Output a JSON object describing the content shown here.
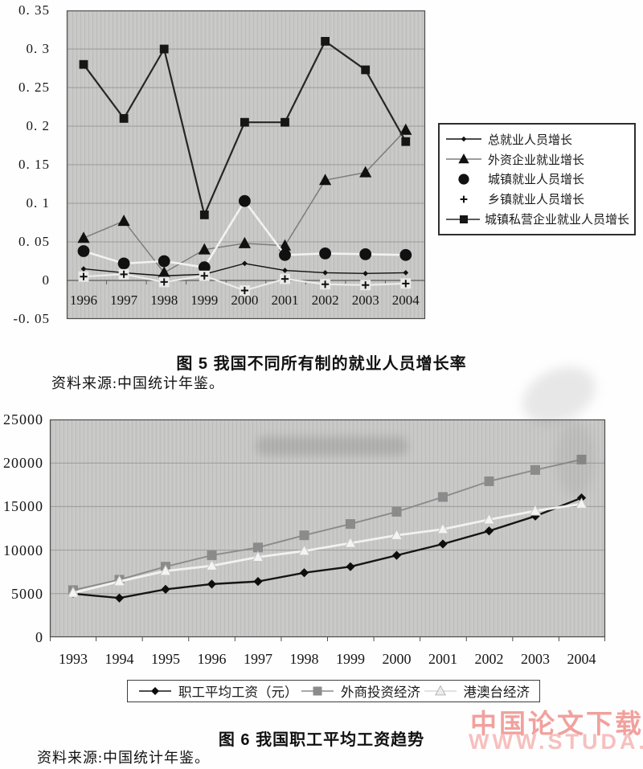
{
  "figure5": {
    "caption": "图 5  我国不同所有制的就业人员增长率",
    "source": "资料来源:中国统计年鉴。"
  },
  "figure6": {
    "caption": "图 6  我国职工平均工资趋势",
    "source": "资料来源:中国统计年鉴。"
  },
  "watermark": {
    "line1": "中国论文下载",
    "line2": "WWW.STUDA.",
    "color1": "#f1a19d",
    "color2": "#f7bfbf"
  },
  "chart_data": [
    {
      "type": "line",
      "title": "图 5 我国不同所有制的就业人员增长率",
      "xlabel": "",
      "ylabel": "",
      "categories": [
        "1996",
        "1997",
        "1998",
        "1999",
        "2000",
        "2001",
        "2002",
        "2003",
        "2004"
      ],
      "ylim": [
        -0.05,
        0.35
      ],
      "yticks": [
        0.35,
        0.3,
        0.25,
        0.2,
        0.15,
        0.1,
        0.05,
        0,
        -0.05
      ],
      "ytick_labels": [
        "0. 35",
        "0. 3",
        "0. 25",
        "0. 2",
        "0. 15",
        "0. 1",
        "0. 05",
        "0",
        "-0. 05"
      ],
      "grid": true,
      "plot_bg": "#c8c8c6",
      "legend_position": "right",
      "series": [
        {
          "name": "总就业人员增长",
          "marker": "diamond",
          "color": "#111111",
          "line_color": "#111111",
          "legend_line": true,
          "values": [
            0.015,
            0.01,
            0.006,
            0.008,
            0.022,
            0.013,
            0.01,
            0.009,
            0.01
          ]
        },
        {
          "name": "外资企业就业增长",
          "marker": "triangle",
          "color": "#111111",
          "line_color": "#7d7d7d",
          "legend_line": true,
          "values": [
            0.055,
            0.077,
            0.01,
            0.04,
            0.048,
            0.045,
            0.13,
            0.14,
            0.195
          ]
        },
        {
          "name": "城镇就业人员增长",
          "marker": "circle",
          "color": "#111111",
          "line_color": "#f2f2f2",
          "legend_line": false,
          "values": [
            0.038,
            0.022,
            0.025,
            0.017,
            0.103,
            0.033,
            0.035,
            0.034,
            0.033
          ]
        },
        {
          "name": "乡镇就业人员增长",
          "marker": "plus",
          "color": "#111111",
          "line_color": "#ececec",
          "legend_line": false,
          "values": [
            0.005,
            0.008,
            -0.002,
            0.006,
            -0.013,
            0.002,
            -0.005,
            -0.006,
            -0.004
          ]
        },
        {
          "name": "城镇私营企业就业人员增长",
          "marker": "square",
          "color": "#161616",
          "line_color": "#262626",
          "legend_line": true,
          "values": [
            0.28,
            0.21,
            0.3,
            0.085,
            0.205,
            0.205,
            0.31,
            0.273,
            0.18
          ]
        }
      ]
    },
    {
      "type": "line",
      "title": "图 6 我国职工平均工资趋势",
      "xlabel": "",
      "ylabel": "",
      "categories": [
        "1993",
        "1994",
        "1995",
        "1996",
        "1997",
        "1998",
        "1999",
        "2000",
        "2001",
        "2002",
        "2003",
        "2004"
      ],
      "ylim": [
        0,
        25000
      ],
      "yticks": [
        25000,
        20000,
        15000,
        10000,
        5000,
        0
      ],
      "ytick_labels": [
        "25000",
        "20000",
        "15000",
        "10000",
        "5000",
        "0"
      ],
      "grid": true,
      "plot_bg": "#c8c8c6",
      "legend_position": "bottom",
      "series": [
        {
          "name": "职工平均工资（元）",
          "marker": "diamond",
          "color": "#0e0e0e",
          "line_color": "#151515",
          "legend_line": true,
          "values": [
            5000,
            4500,
            5500,
            6100,
            6400,
            7400,
            8100,
            9400,
            10700,
            12200,
            13900,
            16000
          ]
        },
        {
          "name": "外商投资经济",
          "marker": "square",
          "color": "#8b8b8b",
          "line_color": "#8b8b8b",
          "legend_line": true,
          "values": [
            5400,
            6600,
            8100,
            9400,
            10300,
            11700,
            13000,
            14400,
            16100,
            17900,
            19200,
            20400
          ]
        },
        {
          "name": "港澳台经济",
          "marker": "triangle-light",
          "color": "#f4f4f4",
          "line_color": "#f2f2f2",
          "legend_line": true,
          "values": [
            5100,
            6400,
            7600,
            8200,
            9200,
            9900,
            10800,
            11700,
            12400,
            13500,
            14500,
            15300
          ]
        }
      ]
    }
  ]
}
